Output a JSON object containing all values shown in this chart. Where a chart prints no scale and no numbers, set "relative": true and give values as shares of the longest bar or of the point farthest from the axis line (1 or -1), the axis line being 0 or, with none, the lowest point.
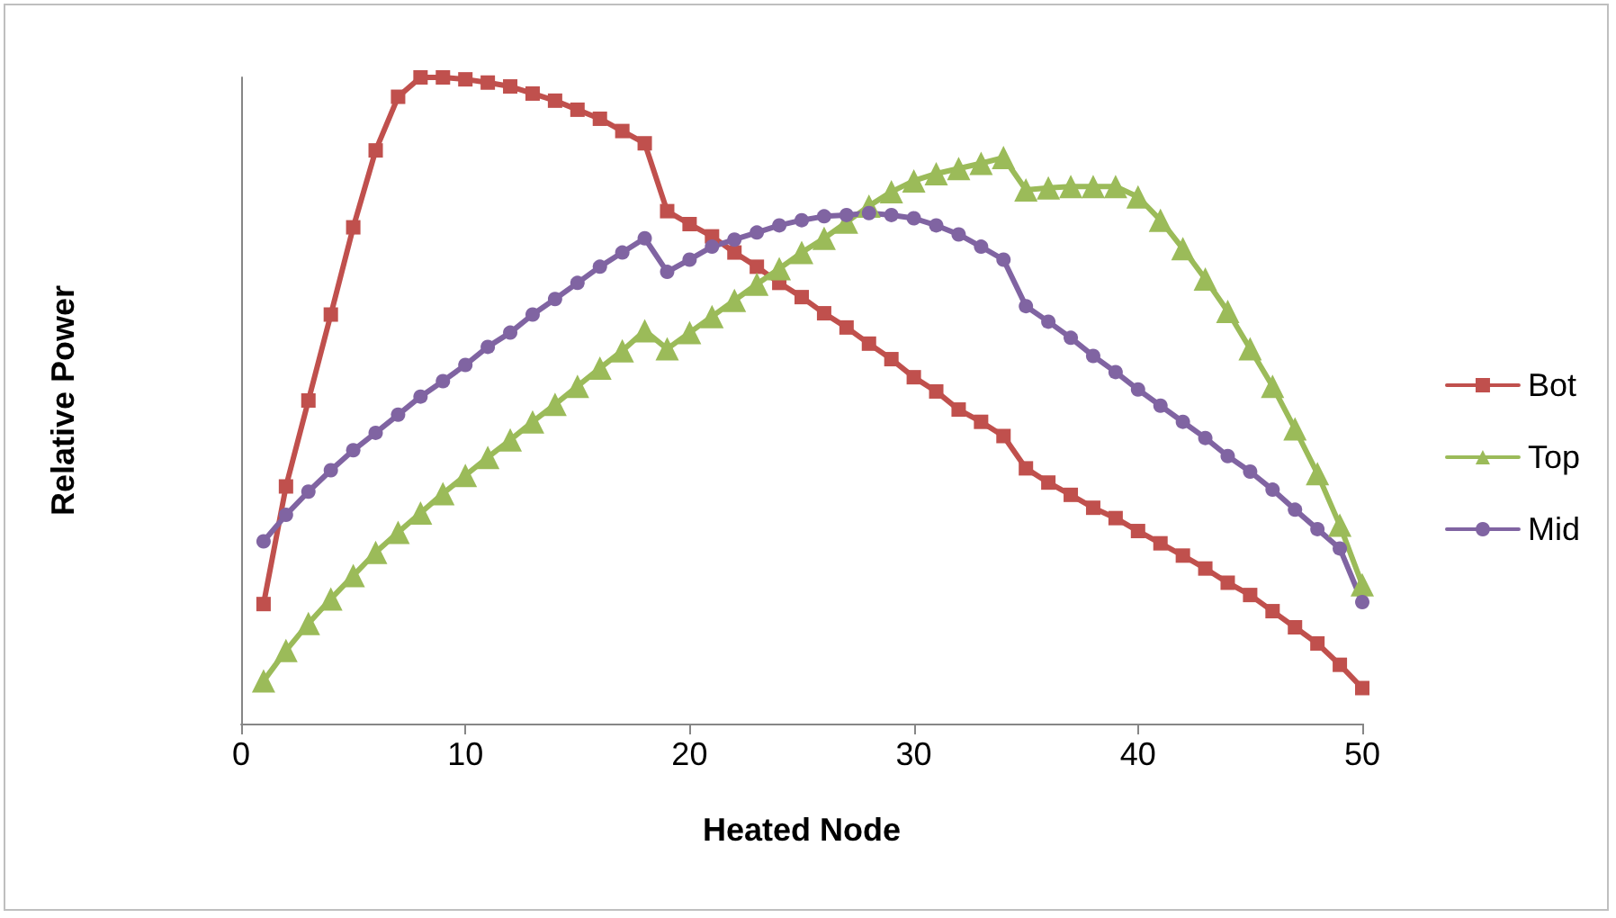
{
  "chart_data": {
    "type": "line",
    "relative": true,
    "xlabel": "Heated Node",
    "ylabel": "Relative Power",
    "xlim": [
      0,
      50
    ],
    "xticks": [
      0,
      10,
      20,
      30,
      40,
      50
    ],
    "grid": false,
    "legend": "right",
    "line_style": "solid",
    "x": [
      1,
      2,
      3,
      4,
      5,
      6,
      7,
      8,
      9,
      10,
      11,
      12,
      13,
      14,
      15,
      16,
      17,
      18,
      19,
      20,
      21,
      22,
      23,
      24,
      25,
      26,
      27,
      28,
      29,
      30,
      31,
      32,
      33,
      34,
      35,
      36,
      37,
      38,
      39,
      40,
      41,
      42,
      43,
      44,
      45,
      46,
      47,
      48,
      49,
      50
    ],
    "series": [
      {
        "name": "Bot",
        "color": "#c0504d",
        "marker": "square",
        "values": [
          0.185,
          0.367,
          0.5,
          0.633,
          0.768,
          0.887,
          0.97,
          1,
          1,
          0.997,
          0.992,
          0.986,
          0.975,
          0.964,
          0.95,
          0.936,
          0.917,
          0.898,
          0.793,
          0.773,
          0.754,
          0.729,
          0.707,
          0.682,
          0.66,
          0.635,
          0.613,
          0.588,
          0.564,
          0.536,
          0.514,
          0.486,
          0.467,
          0.445,
          0.395,
          0.373,
          0.354,
          0.334,
          0.318,
          0.298,
          0.279,
          0.26,
          0.24,
          0.218,
          0.199,
          0.174,
          0.149,
          0.124,
          0.091,
          0.055
        ]
      },
      {
        "name": "Top",
        "color": "#9bbb59",
        "marker": "triangle",
        "values": [
          0.066,
          0.113,
          0.155,
          0.193,
          0.229,
          0.265,
          0.296,
          0.326,
          0.356,
          0.384,
          0.412,
          0.439,
          0.467,
          0.494,
          0.522,
          0.55,
          0.577,
          0.608,
          0.58,
          0.605,
          0.63,
          0.655,
          0.68,
          0.704,
          0.729,
          0.751,
          0.776,
          0.801,
          0.823,
          0.84,
          0.851,
          0.859,
          0.867,
          0.876,
          0.826,
          0.829,
          0.831,
          0.831,
          0.831,
          0.815,
          0.779,
          0.735,
          0.688,
          0.638,
          0.58,
          0.522,
          0.456,
          0.387,
          0.307,
          0.215
        ]
      },
      {
        "name": "Mid",
        "color": "#8064a2",
        "marker": "circle",
        "values": [
          0.282,
          0.323,
          0.359,
          0.392,
          0.423,
          0.45,
          0.478,
          0.506,
          0.53,
          0.555,
          0.583,
          0.605,
          0.633,
          0.657,
          0.682,
          0.707,
          0.729,
          0.751,
          0.699,
          0.718,
          0.738,
          0.749,
          0.76,
          0.771,
          0.779,
          0.785,
          0.787,
          0.79,
          0.787,
          0.782,
          0.771,
          0.757,
          0.738,
          0.718,
          0.646,
          0.622,
          0.597,
          0.569,
          0.544,
          0.517,
          0.492,
          0.467,
          0.442,
          0.414,
          0.39,
          0.362,
          0.331,
          0.301,
          0.271,
          0.188
        ]
      }
    ]
  }
}
